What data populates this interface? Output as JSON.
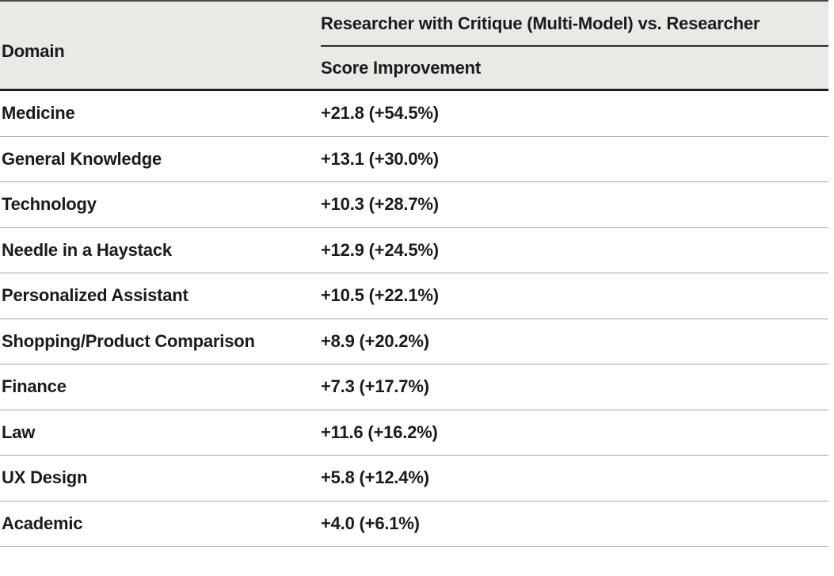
{
  "table": {
    "header": {
      "domain_label": "Domain",
      "group_label": "Researcher with Critique (Multi-Model) vs. Researcher",
      "metric_label": "Score Improvement"
    },
    "rows": [
      {
        "domain": "Medicine",
        "improvement": "+21.8 (+54.5%)"
      },
      {
        "domain": "General Knowledge",
        "improvement": "+13.1 (+30.0%)"
      },
      {
        "domain": "Technology",
        "improvement": "+10.3 (+28.7%)"
      },
      {
        "domain": "Needle in a Haystack",
        "improvement": "+12.9 (+24.5%)"
      },
      {
        "domain": "Personalized Assistant",
        "improvement": "+10.5 (+22.1%)"
      },
      {
        "domain": "Shopping/Product Comparison",
        "improvement": "+8.9 (+20.2%)"
      },
      {
        "domain": "Finance",
        "improvement": "+7.3 (+17.7%)"
      },
      {
        "domain": "Law",
        "improvement": "+11.6 (+16.2%)"
      },
      {
        "domain": "UX Design",
        "improvement": "+5.8 (+12.4%)"
      },
      {
        "domain": "Academic",
        "improvement": "+4.0 (+6.1%)"
      }
    ]
  },
  "colors": {
    "header_background": "#eae9e5",
    "text": "#1b1b1b",
    "thick_rule": "#1d1d1d",
    "thin_rule": "#a6a6a6"
  },
  "chart_data": {
    "type": "table",
    "title": "Researcher with Critique (Multi-Model) vs. Researcher — Score Improvement",
    "columns": [
      "Domain",
      "Score Improvement"
    ],
    "categories": [
      "Medicine",
      "General Knowledge",
      "Technology",
      "Needle in a Haystack",
      "Personalized Assistant",
      "Shopping/Product Comparison",
      "Finance",
      "Law",
      "UX Design",
      "Academic"
    ],
    "series": [
      {
        "name": "Score Improvement (absolute)",
        "values": [
          21.8,
          13.1,
          10.3,
          12.9,
          10.5,
          8.9,
          7.3,
          11.6,
          5.8,
          4.0
        ]
      },
      {
        "name": "Score Improvement (percent)",
        "values": [
          54.5,
          30.0,
          28.7,
          24.5,
          22.1,
          20.2,
          17.7,
          16.2,
          12.4,
          6.1
        ]
      }
    ]
  }
}
